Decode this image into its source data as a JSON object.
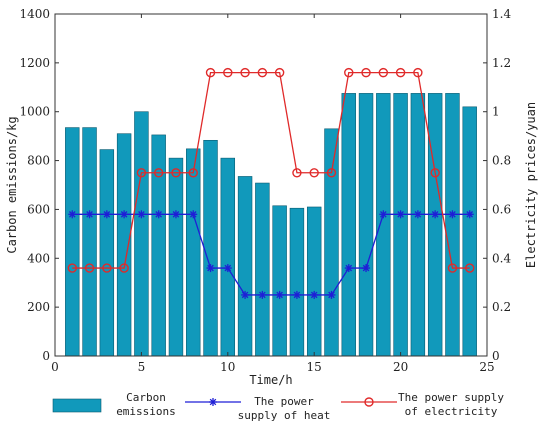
{
  "chart_data": {
    "type": "bar",
    "xlabel": "Time/h",
    "ylabel_left": "Carbon emissions/kg",
    "ylabel_right": "Electricity prices/yuan",
    "x": [
      1,
      2,
      3,
      4,
      5,
      6,
      7,
      8,
      9,
      10,
      11,
      12,
      13,
      14,
      15,
      16,
      17,
      18,
      19,
      20,
      21,
      22,
      23,
      24
    ],
    "xlim": [
      0,
      25
    ],
    "ylim_left": [
      0,
      1400
    ],
    "ylim_right": [
      0,
      1.4
    ],
    "xticks": [
      "0",
      "5",
      "10",
      "15",
      "20",
      "25"
    ],
    "yticks_left": [
      "0",
      "200",
      "400",
      "600",
      "800",
      "1000",
      "1200",
      "1400"
    ],
    "yticks_right": [
      "0",
      "0.2",
      "0.4",
      "0.6",
      "0.8",
      "1",
      "1.2",
      "1.4"
    ],
    "colors": {
      "bars": "#1199bb",
      "heat": "#1f1fd6",
      "electricity": "#e02a2a"
    },
    "series": [
      {
        "name": "Carbon emissions",
        "type": "bar",
        "axis": "left",
        "values": [
          935,
          935,
          845,
          910,
          1000,
          905,
          810,
          848,
          883,
          810,
          735,
          708,
          615,
          605,
          610,
          930,
          1075,
          1075,
          1075,
          1075,
          1075,
          1075,
          1075,
          1020
        ]
      },
      {
        "name": "The power supply of heat",
        "type": "line",
        "axis": "right",
        "marker": "asterisk",
        "values": [
          0.58,
          0.58,
          0.58,
          0.58,
          0.58,
          0.58,
          0.58,
          0.58,
          0.36,
          0.36,
          0.25,
          0.25,
          0.25,
          0.25,
          0.25,
          0.25,
          0.36,
          0.36,
          0.58,
          0.58,
          0.58,
          0.58,
          0.58,
          0.58
        ]
      },
      {
        "name": "The power supply of electricity",
        "type": "line",
        "axis": "right",
        "marker": "circle",
        "values": [
          0.36,
          0.36,
          0.36,
          0.36,
          0.75,
          0.75,
          0.75,
          0.75,
          1.16,
          1.16,
          1.16,
          1.16,
          1.16,
          0.75,
          0.75,
          0.75,
          1.16,
          1.16,
          1.16,
          1.16,
          1.16,
          0.75,
          0.36,
          0.36
        ]
      }
    ],
    "legend": {
      "position": "bottom",
      "items": [
        {
          "line1": "Carbon",
          "line2": "emissions"
        },
        {
          "line1": "The power",
          "line2": "supply of heat"
        },
        {
          "line1": "The power supply",
          "line2": "of electricity"
        }
      ]
    }
  }
}
